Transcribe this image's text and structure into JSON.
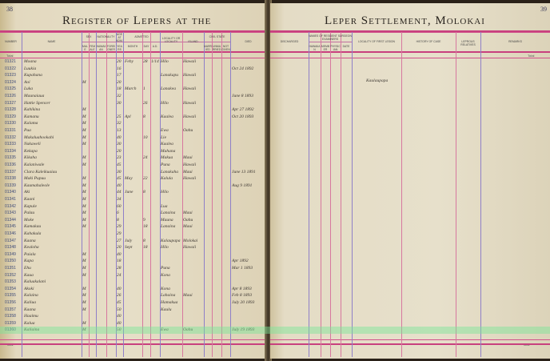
{
  "left_page": {
    "page_number": "38",
    "title": "Register of Lepers at the",
    "headers": {
      "number": "Number",
      "name": "Name",
      "sex": "Sex",
      "male": "Male",
      "female": "Female",
      "nationality": "Nationality",
      "hawaiian": "Hawaiian",
      "foreigner": "Foreigner",
      "age": "Age at Adm.",
      "years": "Years",
      "admitted": "Admitted",
      "month": "Month",
      "day": "Day",
      "ad": "A.D.",
      "locality": "Locality or Locality",
      "island": "Island",
      "civil_state": "Civil State",
      "married": "Married",
      "unmarried": "Unmarried",
      "not_given": "Not Given",
      "died": "Died"
    },
    "total_label": "Total",
    "footer_total": "Total",
    "rows": [
      {
        "num": "01321",
        "name": "Moana",
        "sex": "",
        "nat": "",
        "age": "20",
        "month": "Feby",
        "day": "28",
        "ad": "1/14",
        "loc": "Hilo",
        "island": "Hawaii",
        "died": ""
      },
      {
        "num": "01322",
        "name": "Luukia",
        "sex": "",
        "nat": "",
        "age": "16",
        "month": "",
        "day": "",
        "ad": "",
        "loc": "",
        "island": "",
        "died": "Oct 24 1892"
      },
      {
        "num": "01323",
        "name": "Kupahana",
        "sex": "",
        "nat": "",
        "age": "17",
        "month": "",
        "day": "",
        "ad": "",
        "loc": "Lanakapu",
        "island": "Hawaii",
        "died": ""
      },
      {
        "num": "01324",
        "name": "Aoi",
        "sex": "M",
        "nat": "",
        "age": "20",
        "month": "",
        "day": "",
        "ad": "",
        "loc": "",
        "island": "",
        "died": ""
      },
      {
        "num": "01325",
        "name": "Luka",
        "sex": "",
        "nat": "",
        "age": "18",
        "month": "March",
        "day": "1",
        "ad": "",
        "loc": "Lanakea",
        "island": "Hawaii",
        "died": ""
      },
      {
        "num": "01326",
        "name": "Maunaiaua",
        "sex": "",
        "nat": "",
        "age": "32",
        "month": "",
        "day": "",
        "ad": "",
        "loc": "",
        "island": "",
        "died": "June 8 1893"
      },
      {
        "num": "01327",
        "name": "Hattie Spencer",
        "sex": "",
        "nat": "",
        "age": "30",
        "month": "",
        "day": "26",
        "ad": "",
        "loc": "Hilo",
        "island": "Hawaii",
        "died": ""
      },
      {
        "num": "01328",
        "name": "Kahikina",
        "sex": "M",
        "nat": "",
        "age": "",
        "month": "",
        "day": "",
        "ad": "",
        "loc": "",
        "island": "",
        "died": "Apr 27 1892"
      },
      {
        "num": "01329",
        "name": "Kamanu",
        "sex": "M",
        "nat": "",
        "age": "25",
        "month": "Apl",
        "day": "8",
        "ad": "",
        "loc": "Kaalea",
        "island": "Hawaii",
        "died": "Oct 20 1893"
      },
      {
        "num": "01330",
        "name": "Kalama",
        "sex": "M",
        "nat": "",
        "age": "32",
        "month": "",
        "day": "",
        "ad": "",
        "loc": "",
        "island": "",
        "died": ""
      },
      {
        "num": "01331",
        "name": "Pua",
        "sex": "M",
        "nat": "",
        "age": "13",
        "month": "",
        "day": "",
        "ad": "",
        "loc": "Ewa",
        "island": "Oahu",
        "died": ""
      },
      {
        "num": "01332",
        "name": "Makaluahookahi",
        "sex": "M",
        "nat": "",
        "age": "40",
        "month": "",
        "day": "10",
        "ad": "",
        "loc": "Lie",
        "island": "",
        "died": ""
      },
      {
        "num": "01333",
        "name": "Nakaweli",
        "sex": "M",
        "nat": "",
        "age": "30",
        "month": "",
        "day": "",
        "ad": "",
        "loc": "Kaalea",
        "island": "",
        "died": ""
      },
      {
        "num": "01334",
        "name": "Kekapa",
        "sex": "",
        "nat": "",
        "age": "20",
        "month": "",
        "day": "",
        "ad": "",
        "loc": "Mahana",
        "island": "",
        "died": ""
      },
      {
        "num": "01335",
        "name": "Kikaha",
        "sex": "M",
        "nat": "",
        "age": "23",
        "month": "",
        "day": "24",
        "ad": "",
        "loc": "Makua",
        "island": "Maui",
        "died": ""
      },
      {
        "num": "01336",
        "name": "Kalaniwale",
        "sex": "M",
        "nat": "",
        "age": "45",
        "month": "",
        "day": "",
        "ad": "",
        "loc": "Puna",
        "island": "Hawaii",
        "died": ""
      },
      {
        "num": "01337",
        "name": "Clara Kaleikuaiau",
        "sex": "",
        "nat": "",
        "age": "30",
        "month": "",
        "day": "",
        "ad": "",
        "loc": "Lanakaha",
        "island": "Maui",
        "died": "June 13 1891"
      },
      {
        "num": "01338",
        "name": "Maki Pupuu",
        "sex": "M",
        "nat": "",
        "age": "45",
        "month": "May",
        "day": "22",
        "ad": "",
        "loc": "Kalula",
        "island": "Hawaii",
        "died": ""
      },
      {
        "num": "01339",
        "name": "Kaumahaleole",
        "sex": "M",
        "nat": "",
        "age": "40",
        "month": "",
        "day": "",
        "ad": "",
        "loc": "",
        "island": "",
        "died": "Aug 9 1891"
      },
      {
        "num": "01340",
        "name": "Aki",
        "sex": "M",
        "nat": "",
        "age": "44",
        "month": "June",
        "day": "8",
        "ad": "",
        "loc": "Hilo",
        "island": "",
        "died": ""
      },
      {
        "num": "01341",
        "name": "Kaani",
        "sex": "M",
        "nat": "",
        "age": "34",
        "month": "",
        "day": "",
        "ad": "",
        "loc": "",
        "island": "",
        "died": ""
      },
      {
        "num": "01342",
        "name": "Kapule",
        "sex": "M",
        "nat": "",
        "age": "60",
        "month": "",
        "day": "",
        "ad": "",
        "loc": "Lua",
        "island": "",
        "died": ""
      },
      {
        "num": "01343",
        "name": "Palau",
        "sex": "M",
        "nat": "",
        "age": "6",
        "month": "",
        "day": "",
        "ad": "",
        "loc": "Lanaina",
        "island": "Maui",
        "died": ""
      },
      {
        "num": "01344",
        "name": "Moke",
        "sex": "M",
        "nat": "",
        "age": "8",
        "month": "",
        "day": "9",
        "ad": "",
        "loc": "Mauna",
        "island": "Oahu",
        "died": ""
      },
      {
        "num": "01345",
        "name": "Kamakau",
        "sex": "M",
        "nat": "",
        "age": "29",
        "month": "",
        "day": "18",
        "ad": "",
        "loc": "Lanaina",
        "island": "Maui",
        "died": ""
      },
      {
        "num": "01346",
        "name": "Kahakula",
        "sex": "",
        "nat": "",
        "age": "29",
        "month": "",
        "day": "",
        "ad": "",
        "loc": "",
        "island": "",
        "died": ""
      },
      {
        "num": "01347",
        "name": "Kaana",
        "sex": "",
        "nat": "",
        "age": "27",
        "month": "July",
        "day": "8",
        "ad": "",
        "loc": "Kalaupapa",
        "island": "Molokai",
        "died": ""
      },
      {
        "num": "01348",
        "name": "Kealoha",
        "sex": "",
        "nat": "",
        "age": "20",
        "month": "Sept",
        "day": "18",
        "ad": "",
        "loc": "Hilo",
        "island": "Hawaii",
        "died": ""
      },
      {
        "num": "01349",
        "name": "Paiala",
        "sex": "M",
        "nat": "",
        "age": "40",
        "month": "",
        "day": "",
        "ad": "",
        "loc": "",
        "island": "",
        "died": ""
      },
      {
        "num": "01350",
        "name": "Kapa",
        "sex": "M",
        "nat": "",
        "age": "18",
        "month": "",
        "day": "",
        "ad": "",
        "loc": "",
        "island": "",
        "died": "Apr 1892"
      },
      {
        "num": "01351",
        "name": "Ehu",
        "sex": "M",
        "nat": "",
        "age": "28",
        "month": "",
        "day": "",
        "ad": "",
        "loc": "Puna",
        "island": "",
        "died": "Mar 1 1893"
      },
      {
        "num": "01352",
        "name": "Kaua",
        "sex": "M",
        "nat": "",
        "age": "24",
        "month": "",
        "day": "",
        "ad": "",
        "loc": "Kona",
        "island": "",
        "died": ""
      },
      {
        "num": "01353",
        "name": "Kaluakalani",
        "sex": "",
        "nat": "",
        "age": "",
        "month": "",
        "day": "",
        "ad": "",
        "loc": "",
        "island": "",
        "died": ""
      },
      {
        "num": "01354",
        "name": "Akoki",
        "sex": "M",
        "nat": "",
        "age": "40",
        "month": "",
        "day": "",
        "ad": "",
        "loc": "Kona",
        "island": "",
        "died": "Apr 8 1893"
      },
      {
        "num": "01355",
        "name": "Kalaina",
        "sex": "M",
        "nat": "",
        "age": "26",
        "month": "",
        "day": "",
        "ad": "",
        "loc": "Lahaina",
        "island": "Maui",
        "died": "Feb 8 1893"
      },
      {
        "num": "01356",
        "name": "Kaliua",
        "sex": "M",
        "nat": "",
        "age": "45",
        "month": "",
        "day": "",
        "ad": "",
        "loc": "Hamakua",
        "island": "",
        "died": "July 20 1893"
      },
      {
        "num": "01357",
        "name": "Kaana",
        "sex": "M",
        "nat": "",
        "age": "50",
        "month": "",
        "day": "",
        "ad": "",
        "loc": "Kaulu",
        "island": "",
        "died": ""
      },
      {
        "num": "01358",
        "name": "Haaimu",
        "sex": "",
        "nat": "",
        "age": "40",
        "month": "",
        "day": "",
        "ad": "",
        "loc": "",
        "island": "",
        "died": ""
      },
      {
        "num": "01359",
        "name": "Kalua",
        "sex": "M",
        "nat": "",
        "age": "40",
        "month": "",
        "day": "",
        "ad": "",
        "loc": "",
        "island": "",
        "died": ""
      },
      {
        "num": "01360",
        "name": "Kaliaina",
        "sex": "M",
        "nat": "",
        "age": "50",
        "month": "",
        "day": "",
        "ad": "",
        "loc": "Ewa",
        "island": "Oahu",
        "died": "July 19 1893"
      }
    ]
  },
  "right_page": {
    "page_number": "39",
    "title": "Leper Settlement, Molokai",
    "headers": {
      "discharged": "Discharged",
      "surgeons": "Names of Resident Surgeon Examiners",
      "s1": "Hawaiian",
      "s2": "Member",
      "s3": "Physician",
      "s4": "Date",
      "locality_first_lesion": "Locality of First Lesion",
      "history": "History of Case",
      "relatives": "Leprous Relatives",
      "remarks": "Remarks"
    },
    "total_label": "Total",
    "footer_total": "Total",
    "row4_note": "Kaulaupapa"
  },
  "colors": {
    "rule_red": "#d0508a",
    "rule_violet": "#8f7fc8",
    "paper": "#e6dec7",
    "highlight": "#78e696"
  }
}
